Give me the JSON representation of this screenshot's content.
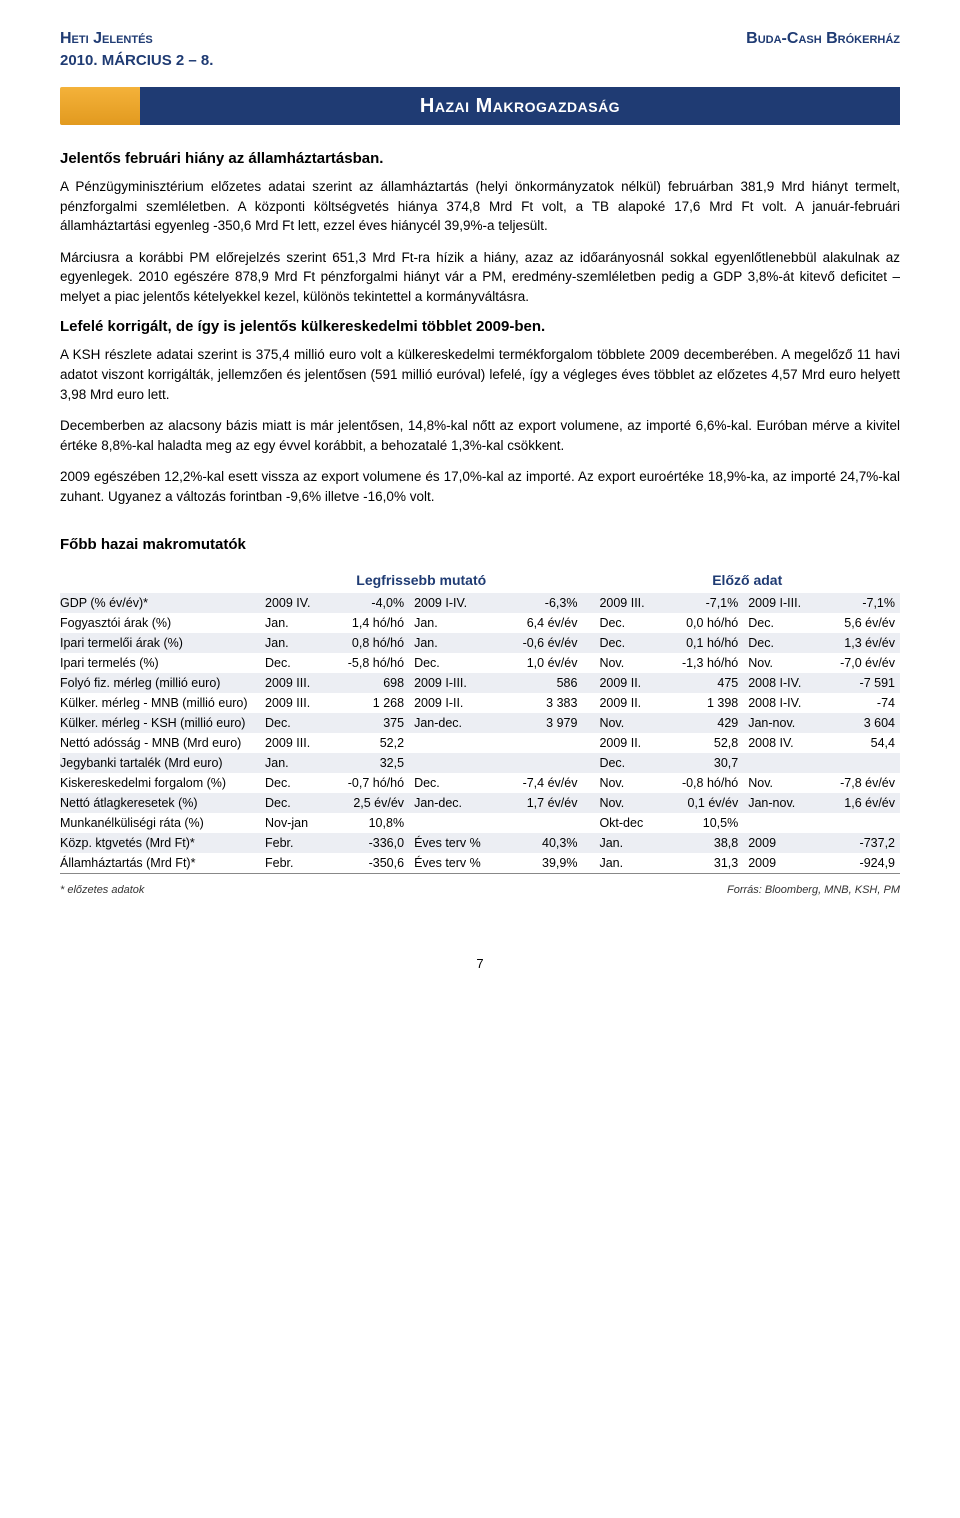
{
  "header": {
    "left": "Heti Jelentés",
    "right": "Buda-Cash Brókerház",
    "date": "2010. MÁRCIUS 2 – 8."
  },
  "banner": "Hazai Makrogazdaság",
  "sub1": "Jelentős februári hiány az államháztartásban.",
  "p1": "A Pénzügyminisztérium előzetes adatai szerint az államháztartás (helyi önkormányzatok nélkül) februárban 381,9 Mrd hiányt termelt, pénzforgalmi szemléletben. A központi költségvetés hiánya 374,8 Mrd Ft volt, a TB alapoké 17,6 Mrd Ft volt. A január-februári államháztartási egyenleg -350,6 Mrd Ft lett, ezzel éves hiánycél 39,9%-a teljesült.",
  "p2": "Márciusra a korábbi PM előrejelzés szerint 651,3 Mrd Ft-ra hízik a hiány, azaz az időarányosnál sokkal egyenlőtlenebbül alakulnak az egyenlegek. 2010 egészére 878,9 Mrd Ft pénzforgalmi hiányt vár a PM, eredmény-szemléletben pedig a GDP 3,8%-át kitevő deficitet – melyet a piac jelentős kételyekkel kezel, különös tekintettel a kormányváltásra.",
  "sub2": "Lefelé korrigált, de így is jelentős külkereskedelmi többlet 2009-ben.",
  "p3": "A KSH részlete adatai szerint is 375,4 millió euro volt a külkereskedelmi termékforgalom többlete 2009 decemberében. A megelőző 11 havi adatot viszont korrigálták, jellemzően és jelentősen (591 millió euróval) lefelé, így a végleges éves többlet az előzetes 4,57 Mrd euro helyett 3,98 Mrd euro lett.",
  "p4": "Decemberben az alacsony bázis miatt is már jelentősen, 14,8%-kal nőtt az export volumene, az importé 6,6%-kal. Euróban mérve a kivitel értéke 8,8%-kal haladta meg az egy évvel korábbit, a behozatalé 1,3%-kal csökkent.",
  "p5": "2009 egészében 12,2%-kal esett vissza az export volumene és 17,0%-kal az importé. Az export euroértéke 18,9%-ka, az importé 24,7%-kal zuhant. Ugyanez a változás forintban -9,6% illetve -16,0% volt.",
  "table": {
    "title": "Főbb hazai makromutatók",
    "h1": "Legfrissebb mutató",
    "h2": "Előző adat",
    "rows": [
      {
        "shade": true,
        "label": "GDP (% év/év)*",
        "c": [
          "2009 IV.",
          "-4,0%",
          "2009 I-IV.",
          "-6,3%",
          "2009 III.",
          "-7,1%",
          "2009 I-III.",
          "-7,1%"
        ]
      },
      {
        "shade": false,
        "label": "Fogyasztói árak (%)",
        "c": [
          "Jan.",
          "1,4 hó/hó",
          "Jan.",
          "6,4 év/év",
          "Dec.",
          "0,0 hó/hó",
          "Dec.",
          "5,6 év/év"
        ]
      },
      {
        "shade": true,
        "label": "Ipari termelői árak (%)",
        "c": [
          "Jan.",
          "0,8 hó/hó",
          "Jan.",
          "-0,6 év/év",
          "Dec.",
          "0,1 hó/hó",
          "Dec.",
          "1,3 év/év"
        ]
      },
      {
        "shade": false,
        "label": "Ipari termelés (%)",
        "c": [
          "Dec.",
          "-5,8 hó/hó",
          "Dec.",
          "1,0 év/év",
          "Nov.",
          "-1,3 hó/hó",
          "Nov.",
          "-7,0 év/év"
        ]
      },
      {
        "shade": true,
        "label": "Folyó fiz. mérleg (millió euro)",
        "c": [
          "2009 III.",
          "698",
          "2009 I-III.",
          "586",
          "2009 II.",
          "475",
          "2008 I-IV.",
          "-7 591"
        ]
      },
      {
        "shade": false,
        "label": "Külker. mérleg - MNB (millió euro)",
        "c": [
          "2009 III.",
          "1 268",
          "2009 I-II.",
          "3 383",
          "2009 II.",
          "1 398",
          "2008 I-IV.",
          "-74"
        ]
      },
      {
        "shade": true,
        "label": "Külker. mérleg - KSH (millió euro)",
        "c": [
          "Dec.",
          "375",
          "Jan-dec.",
          "3 979",
          "Nov.",
          "429",
          "Jan-nov.",
          "3 604"
        ]
      },
      {
        "shade": false,
        "label": "Nettó adósság - MNB (Mrd euro)",
        "c": [
          "2009 III.",
          "52,2",
          "",
          "",
          "2009 II.",
          "52,8",
          "2008 IV.",
          "54,4"
        ]
      },
      {
        "shade": true,
        "label": "Jegybanki tartalék (Mrd euro)",
        "c": [
          "Jan.",
          "32,5",
          "",
          "",
          "Dec.",
          "30,7",
          "",
          ""
        ]
      },
      {
        "shade": false,
        "label": "Kiskereskedelmi forgalom (%)",
        "c": [
          "Dec.",
          "-0,7 hó/hó",
          "Dec.",
          "-7,4 év/év",
          "Nov.",
          "-0,8 hó/hó",
          "Nov.",
          "-7,8 év/év"
        ]
      },
      {
        "shade": true,
        "label": "Nettó átlagkeresetek (%)",
        "c": [
          "Dec.",
          "2,5 év/év",
          "Jan-dec.",
          "1,7 év/év",
          "Nov.",
          "0,1 év/év",
          "Jan-nov.",
          "1,6 év/év"
        ]
      },
      {
        "shade": false,
        "label": "Munkanélküliségi ráta (%)",
        "c": [
          "Nov-jan",
          "10,8%",
          "",
          "",
          "Okt-dec",
          "10,5%",
          "",
          ""
        ]
      },
      {
        "shade": true,
        "label": "Közp. ktgvetés (Mrd Ft)*",
        "c": [
          "Febr.",
          "-336,0",
          "Éves terv %",
          "40,3%",
          "Jan.",
          "38,8",
          "2009",
          "-737,2"
        ]
      },
      {
        "shade": false,
        "label": "Államháztartás (Mrd Ft)*",
        "c": [
          "Febr.",
          "-350,6",
          "Éves terv %",
          "39,9%",
          "Jan.",
          "31,3",
          "2009",
          "-924,9"
        ]
      }
    ],
    "foot_left": "* előzetes adatok",
    "foot_right": "Forrás: Bloomberg, MNB, KSH, PM"
  },
  "pagenum": "7"
}
